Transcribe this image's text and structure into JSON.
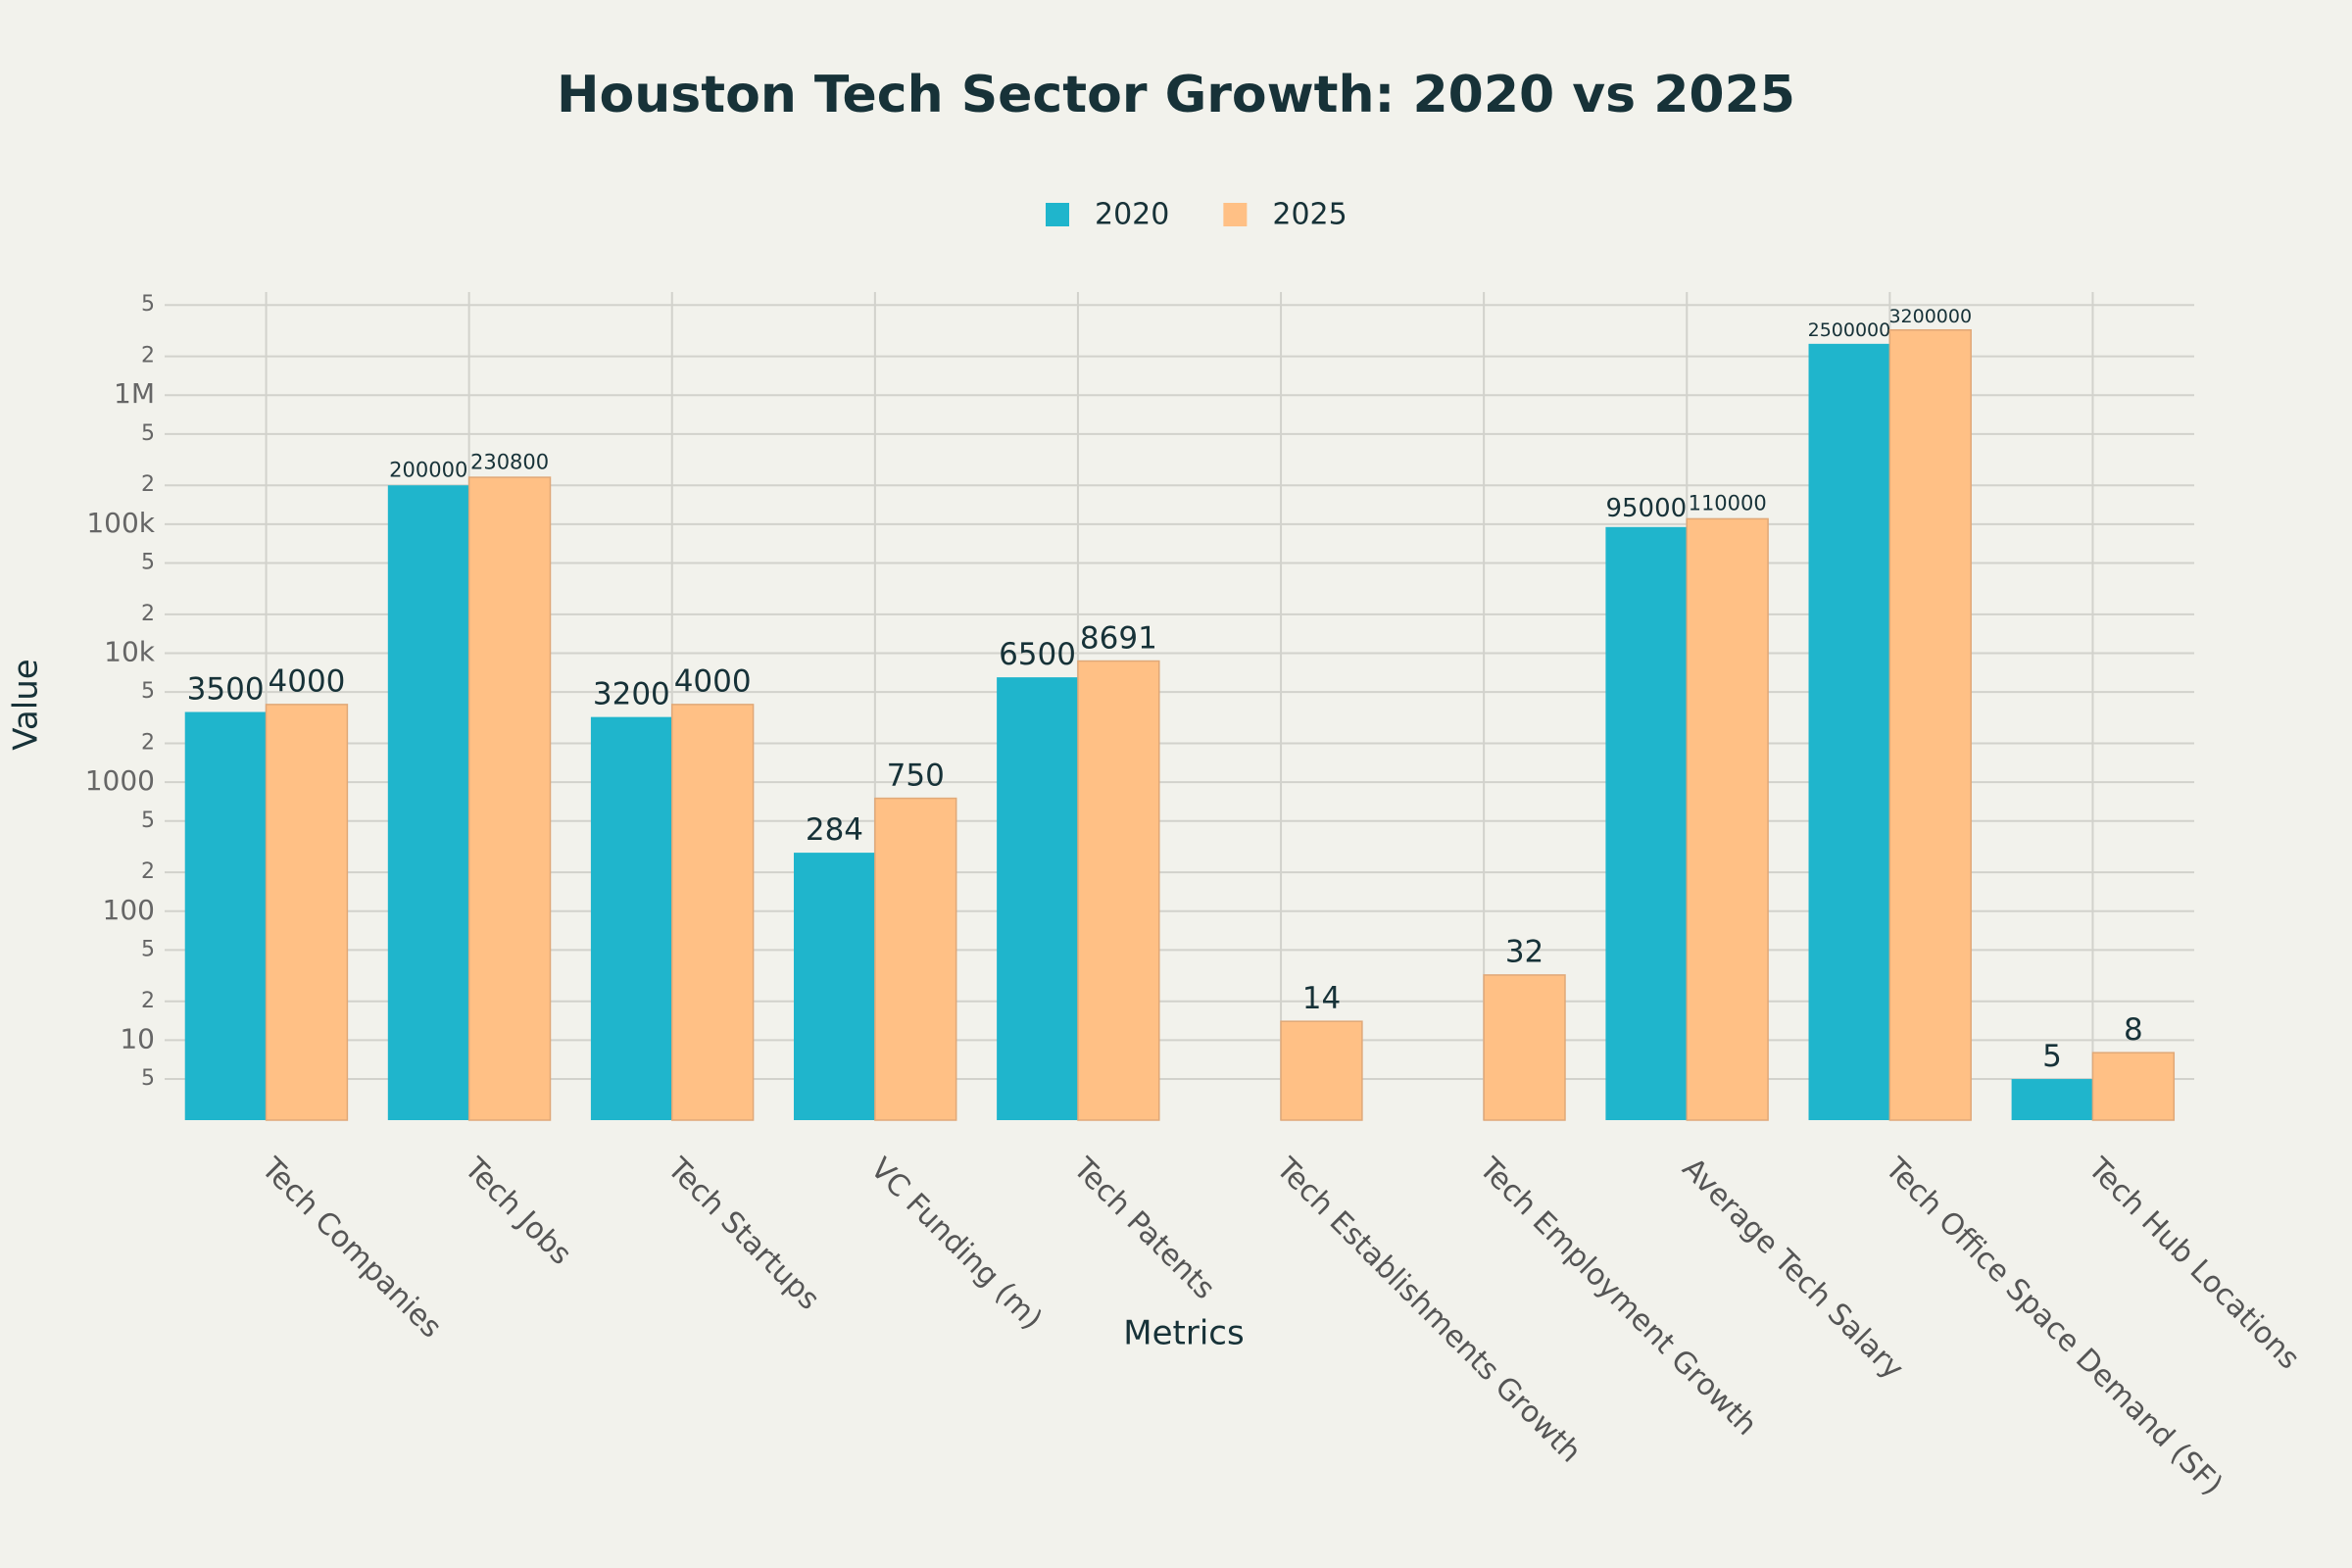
{
  "chart_data": {
    "type": "bar",
    "title": "Houston Tech Sector Growth: 2020 vs 2025",
    "x_label": "Metrics",
    "y_label": "Value",
    "categories": [
      "Tech Companies",
      "Tech Jobs",
      "Tech Startups",
      "VC Funding (m)",
      "Tech Patents",
      "Tech Establishments Growth",
      "Tech Employment Growth",
      "Average Tech Salary",
      "Tech Office Space Demand (SF)",
      "Tech Hub Locations"
    ],
    "series": [
      {
        "name": "2020",
        "color": "#1fb5cc",
        "values": [
          3500,
          200000,
          3200,
          284,
          6500,
          null,
          null,
          95000,
          2500000,
          5
        ]
      },
      {
        "name": "2025",
        "color": "#ffc085",
        "values": [
          4000,
          230800,
          4000,
          750,
          8691,
          14,
          32,
          110000,
          3200000,
          8
        ]
      }
    ],
    "log_y": true,
    "ylim": [
      2.4,
      6300000
    ],
    "yticks": [
      5,
      10,
      {
        "value": 20,
        "label": "2"
      },
      {
        "value": 50,
        "label": "5"
      },
      100,
      {
        "value": 200,
        "label": "2"
      },
      {
        "value": 500,
        "label": "5"
      },
      1000,
      {
        "value": 2000,
        "label": "2"
      },
      {
        "value": 5000,
        "label": "5"
      },
      {
        "value": 10000,
        "label": "10k"
      },
      {
        "value": 20000,
        "label": "2"
      },
      {
        "value": 50000,
        "label": "5"
      },
      {
        "value": 100000,
        "label": "100k"
      },
      {
        "value": 200000,
        "label": "2"
      },
      {
        "value": 500000,
        "label": "5"
      },
      {
        "value": 1000000,
        "label": "1M"
      },
      {
        "value": 2000000,
        "label": "2"
      },
      {
        "value": 5000000,
        "label": "5"
      }
    ],
    "grid": true,
    "legend_position": "top"
  }
}
